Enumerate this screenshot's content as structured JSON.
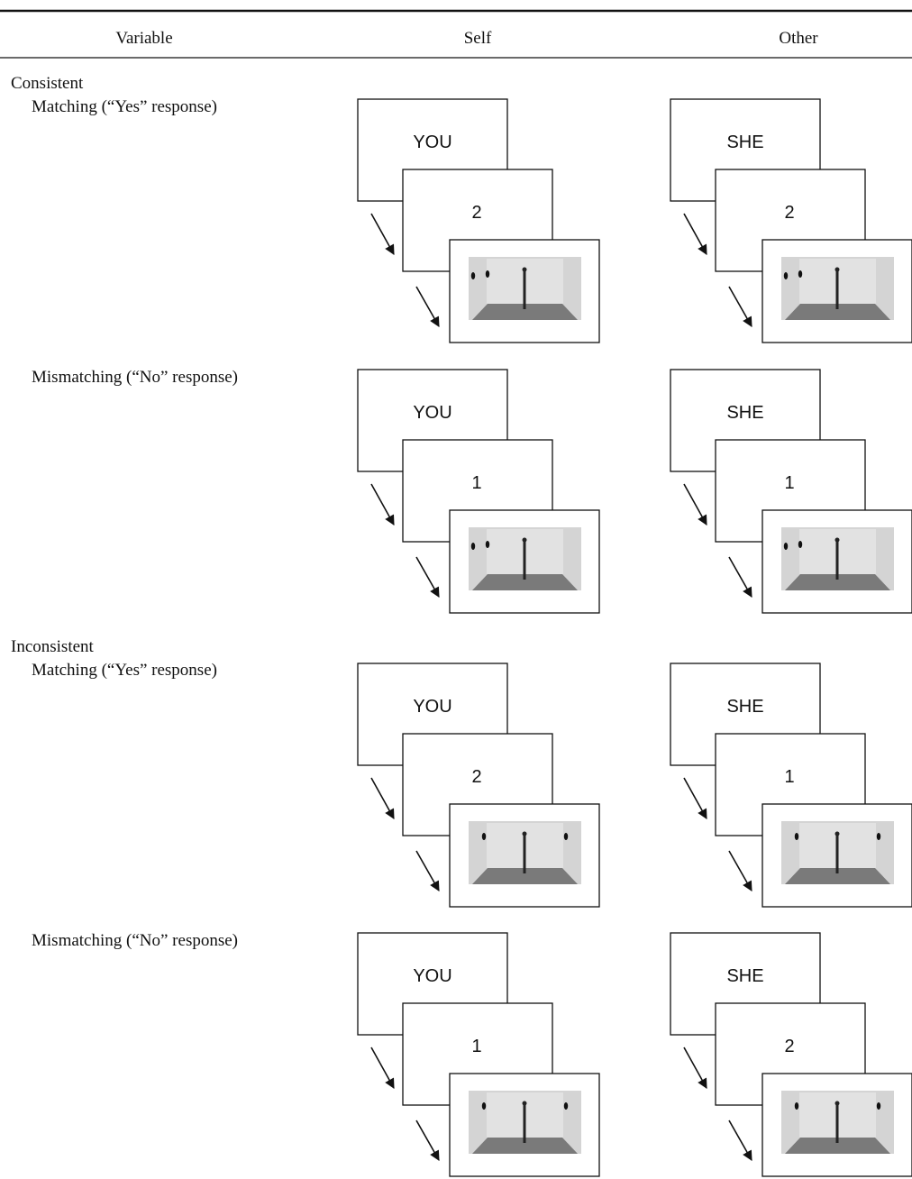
{
  "table": {
    "columns": [
      "Variable",
      "Self",
      "Other"
    ],
    "groups": [
      {
        "label": "Consistent",
        "rows": [
          {
            "label": "Matching (“Yes” response)",
            "self": {
              "pronoun": "YOU",
              "number": "2"
            },
            "other": {
              "pronoun": "SHE",
              "number": "2"
            }
          },
          {
            "label": "Mismatching (“No” response)",
            "self": {
              "pronoun": "YOU",
              "number": "1"
            },
            "other": {
              "pronoun": "SHE",
              "number": "1"
            }
          }
        ]
      },
      {
        "label": "Inconsistent",
        "rows": [
          {
            "label": "Matching (“Yes” response)",
            "self": {
              "pronoun": "YOU",
              "number": "2"
            },
            "other": {
              "pronoun": "SHE",
              "number": "1"
            }
          },
          {
            "label": "Mismatching (“No” response)",
            "self": {
              "pronoun": "YOU",
              "number": "1"
            },
            "other": {
              "pronoun": "SHE",
              "number": "2"
            }
          }
        ]
      }
    ]
  }
}
